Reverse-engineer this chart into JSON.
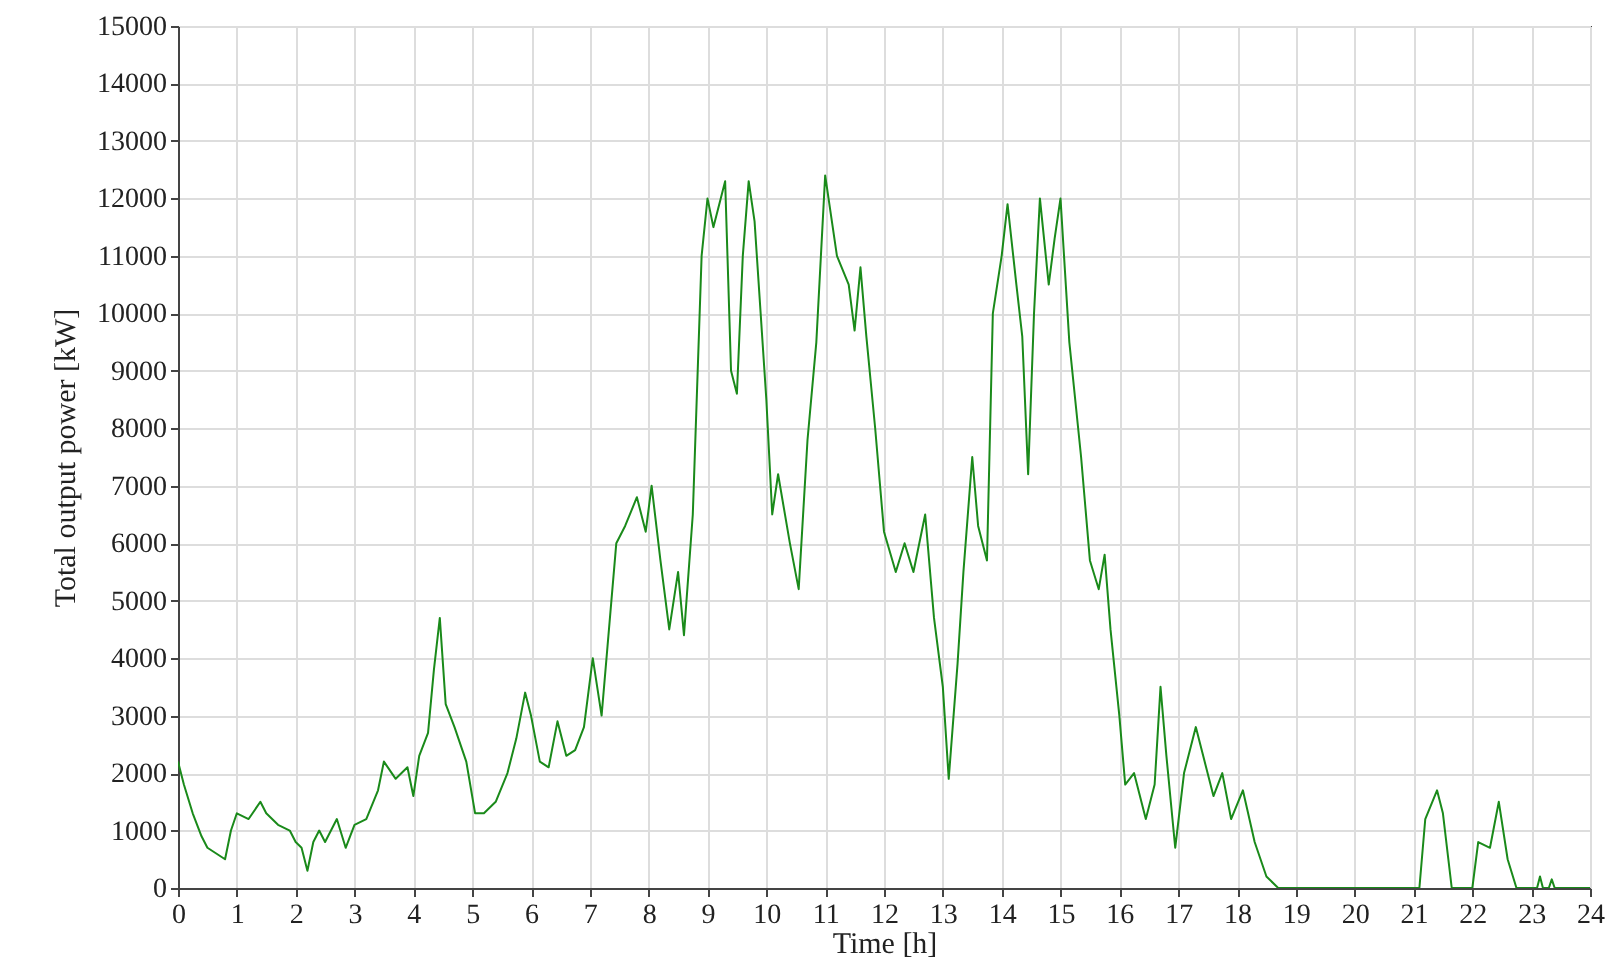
{
  "chart_data": {
    "type": "line",
    "xlabel": "Time [h]",
    "ylabel": "Total output power [kW]",
    "xlim": [
      0,
      24
    ],
    "xticks": [
      0,
      1,
      2,
      3,
      4,
      5,
      6,
      7,
      8,
      9,
      10,
      11,
      12,
      13,
      14,
      15,
      16,
      17,
      18,
      19,
      20,
      21,
      22,
      23,
      24
    ],
    "ylim": [
      0,
      15000
    ],
    "yticks": [
      0,
      1000,
      2000,
      3000,
      4000,
      5000,
      6000,
      7000,
      8000,
      9000,
      10000,
      11000,
      12000,
      13000,
      14000,
      15000
    ],
    "grid": true,
    "line_style": "solid",
    "marker": "none",
    "series": [
      {
        "color": "#1a8a1a",
        "x": [
          0,
          0.1,
          0.25,
          0.4,
          0.5,
          0.65,
          0.8,
          0.9,
          1.0,
          1.2,
          1.4,
          1.5,
          1.7,
          1.9,
          2.0,
          2.1,
          2.2,
          2.3,
          2.4,
          2.5,
          2.7,
          2.85,
          3.0,
          3.2,
          3.4,
          3.5,
          3.7,
          3.9,
          4.0,
          4.1,
          4.25,
          4.35,
          4.45,
          4.55,
          4.7,
          4.9,
          5.05,
          5.2,
          5.4,
          5.6,
          5.75,
          5.9,
          6.0,
          6.15,
          6.3,
          6.45,
          6.6,
          6.75,
          6.9,
          7.05,
          7.2,
          7.3,
          7.45,
          7.6,
          7.8,
          7.95,
          8.05,
          8.2,
          8.35,
          8.5,
          8.6,
          8.75,
          8.9,
          9.0,
          9.1,
          9.3,
          9.4,
          9.5,
          9.6,
          9.7,
          9.8,
          10.0,
          10.1,
          10.2,
          10.4,
          10.55,
          10.7,
          10.85,
          11.0,
          11.2,
          11.4,
          11.5,
          11.6,
          11.7,
          11.85,
          12.0,
          12.2,
          12.35,
          12.5,
          12.7,
          12.85,
          13.0,
          13.1,
          13.25,
          13.35,
          13.5,
          13.6,
          13.75,
          13.85,
          14.0,
          14.1,
          14.25,
          14.35,
          14.45,
          14.55,
          14.65,
          14.8,
          14.9,
          15.0,
          15.15,
          15.35,
          15.5,
          15.65,
          15.75,
          15.85,
          16.0,
          16.1,
          16.25,
          16.45,
          16.6,
          16.7,
          16.8,
          16.95,
          17.1,
          17.3,
          17.45,
          17.6,
          17.75,
          17.9,
          18.1,
          18.3,
          18.5,
          18.7,
          19,
          21.1,
          21.2,
          21.4,
          21.5,
          21.65,
          22.0,
          22.1,
          22.3,
          22.45,
          22.6,
          22.75,
          23.1,
          23.15,
          23.2,
          23.3,
          23.35,
          23.4,
          24
        ],
        "values": [
          2200,
          1800,
          1300,
          900,
          700,
          600,
          500,
          1000,
          1300,
          1200,
          1500,
          1300,
          1100,
          1000,
          800,
          700,
          300,
          800,
          1000,
          800,
          1200,
          700,
          1100,
          1200,
          1700,
          2200,
          1900,
          2100,
          1600,
          2300,
          2700,
          3800,
          4700,
          3200,
          2800,
          2200,
          1300,
          1300,
          1500,
          2000,
          2600,
          3400,
          3000,
          2200,
          2100,
          2900,
          2300,
          2400,
          2800,
          4000,
          3000,
          4200,
          6000,
          6300,
          6800,
          6200,
          7000,
          5700,
          4500,
          5500,
          4400,
          6500,
          11000,
          12000,
          11500,
          12300,
          9000,
          8600,
          11000,
          12300,
          11600,
          8500,
          6500,
          7200,
          6000,
          5200,
          7800,
          9500,
          12400,
          11000,
          10500,
          9700,
          10800,
          9600,
          8000,
          6200,
          5500,
          6000,
          5500,
          6500,
          4700,
          3500,
          1900,
          3900,
          5500,
          7500,
          6300,
          5700,
          10000,
          11000,
          11900,
          10500,
          9600,
          7200,
          10000,
          12000,
          10500,
          11300,
          12000,
          9500,
          7500,
          5700,
          5200,
          5800,
          4500,
          3000,
          1800,
          2000,
          1200,
          1800,
          3500,
          2300,
          700,
          2000,
          2800,
          2200,
          1600,
          2000,
          1200,
          1700,
          800,
          200,
          0,
          0,
          0,
          1200,
          1700,
          1300,
          0,
          0,
          800,
          700,
          1500,
          500,
          0,
          0,
          200,
          0,
          0,
          150,
          0,
          0
        ]
      }
    ]
  }
}
